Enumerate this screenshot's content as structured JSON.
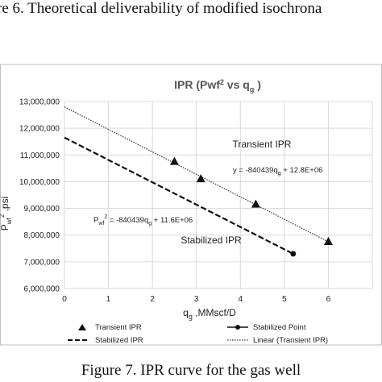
{
  "captions": {
    "top": "re 6. Theoretical deliverability of modified isochrona",
    "bottom": "Figure 7. IPR curve for the gas well"
  },
  "chart_data": {
    "type": "scatter",
    "title_main": "IPR (Pwf",
    "title_sup": "2",
    "title_mid": " vs q",
    "title_sub": "g",
    "title_end": " )",
    "xlabel_main": "q",
    "xlabel_sub": "g",
    "xlabel_rest": " ,MMscf/D",
    "ylabel_main": "P",
    "ylabel_sub": "wf",
    "ylabel_sup": "2",
    "ylabel_rest": " ,psi",
    "xlim": [
      0,
      7
    ],
    "ylim": [
      6000000,
      13000000
    ],
    "xticks": [
      0,
      1,
      2,
      3,
      4,
      5,
      6
    ],
    "yticks": [
      6000000,
      7000000,
      8000000,
      9000000,
      10000000,
      11000000,
      12000000,
      13000000
    ],
    "ytick_labels": [
      "6,000,000",
      "7,000,000",
      "8,000,000",
      "9,000,000",
      "10,000,000",
      "11,000,000",
      "12,000,000",
      "13,000,000"
    ],
    "grid": true,
    "series": [
      {
        "name": "Transient IPR",
        "kind": "markers",
        "marker": "triangle",
        "x": [
          2.5,
          3.1,
          4.35,
          6.0
        ],
        "y": [
          10750000,
          10100000,
          9150000,
          7750000
        ]
      },
      {
        "name": "Stabilized Point",
        "kind": "line-marker",
        "marker": "circle",
        "x": [
          5.2
        ],
        "y": [
          7300000
        ]
      },
      {
        "name": "Stabilized IPR",
        "kind": "dashed",
        "x": [
          0,
          5.2
        ],
        "y": [
          11650000,
          7300000
        ]
      },
      {
        "name": "Linear (Transient IPR)",
        "kind": "dotted",
        "x": [
          0,
          6.0
        ],
        "y": [
          12800000,
          7750000
        ]
      }
    ],
    "annotations": {
      "transient_label": "Transient IPR",
      "transient_eq_a": "y = -840439q",
      "transient_eq_sub": "g",
      "transient_eq_b": " + 12.8E+06",
      "stab_eq_a": "P",
      "stab_eq_sub": "wf",
      "stab_eq_sup": "2",
      "stab_eq_b": " = -840439q",
      "stab_eq_sub2": "g",
      "stab_eq_c": " + 11.6E+06",
      "stabilized_label": "Stabilized IPR"
    },
    "legend_placement": "bottom"
  }
}
